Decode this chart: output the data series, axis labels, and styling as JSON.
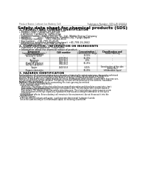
{
  "bg_color": "#ffffff",
  "header_left": "Product Name: Lithium Ion Battery Cell",
  "header_right_line1": "Substance Number: SDS-LIB-000016",
  "header_right_line2": "Established / Revision: Dec.7.2016",
  "title": "Safety data sheet for chemical products (SDS)",
  "section1_title": "1. PRODUCT AND COMPANY IDENTIFICATION",
  "section1_lines": [
    "• Product name: Lithium Ion Battery Cell",
    "• Product code: Cylindrical-type cell",
    "  (UR18650J, UR18650A, UR18650A)",
    "• Company name:   Sanyo Electric Co., Ltd., Mobile Energy Company",
    "• Address:         2001  Kamimoriue, Sumoto-City, Hyogo, Japan",
    "• Telephone number:    +81-799-24-4111",
    "• Fax number:   +81-799-26-4129",
    "• Emergency telephone number (daytime): +81-799-26-2662",
    "  (Night and holiday): +81-799-26-2101"
  ],
  "section2_title": "2. COMPOSITION / INFORMATION ON INGREDIENTS",
  "section2_intro": "• Substance or preparation: Preparation",
  "section2_sub": "• Information about the chemical nature of product:",
  "table_col1_header": "Component",
  "table_col1_sub": "Common chemical name /",
  "table_col1_sub2": "General name",
  "table_col2_header": "CAS number",
  "table_col3_header": "Concentration /",
  "table_col3_sub": "Concentration range",
  "table_col4_header": "Classification and",
  "table_col4_sub": "hazard labeling",
  "table_rows": [
    [
      "Lithium cobalt oxide\n(LiCoO2(+/-10%))",
      "-",
      "30-50%",
      "-"
    ],
    [
      "Iron",
      "7439-89-6",
      "15-20%",
      "-"
    ],
    [
      "Aluminum",
      "7429-90-5",
      "2-6%",
      "-"
    ],
    [
      "Graphite\n(Purity of graphite)\n(Al-Mg-Si graphite)",
      "7782-42-5\n7782-43-2",
      "10-25%",
      "-"
    ],
    [
      "Copper",
      "7440-50-8",
      "6-15%",
      "Sensitization of the skin\ngroup No.2"
    ],
    [
      "Organic electrolyte",
      "-",
      "10-20%",
      "Inflammable liquid"
    ]
  ],
  "section3_title": "3. HAZARDS IDENTIFICATION",
  "section3_text": [
    "For the battery cell, chemical substances are stored in a hermetically sealed metal case, designed to withstand",
    "temperatures in pressure-temperature during normal use. As a result, during normal use, there is no",
    "physical danger of ignition or explosion and there is no danger of hazardous substance leakage.",
    "However, if exposed to a fire, added mechanical shock, decomposed, when electric current more than max use,",
    "the gas release valve will be operated. The battery cell case will be breached of the extreme, hazardous",
    "materials may be released.",
    "Moreover, if heated strongly by the surrounding fire, toxic gas may be emitted.",
    "• Most important hazard and effects:",
    "  Human health effects:",
    "    Inhalation: The release of the electrolyte has an anaesthesia action and stimulates a respiratory tract.",
    "    Skin contact: The release of the electrolyte stimulates a skin. The electrolyte skin contact causes a",
    "    sore and stimulation on the skin.",
    "    Eye contact: The release of the electrolyte stimulates eyes. The electrolyte eye contact causes a sore",
    "    and stimulation on the eye. Especially, substances that causes a strong inflammation of the eye is",
    "    contained.",
    "  Environmental effects: Since a battery cell remains in the environment, do not throw out it into the",
    "  environment.",
    "• Specific hazards:",
    "  If the electrolyte contacts with water, it will generate detrimental hydrogen fluoride.",
    "  Since the used electrolyte is inflammable liquid, do not bring close to fire."
  ]
}
